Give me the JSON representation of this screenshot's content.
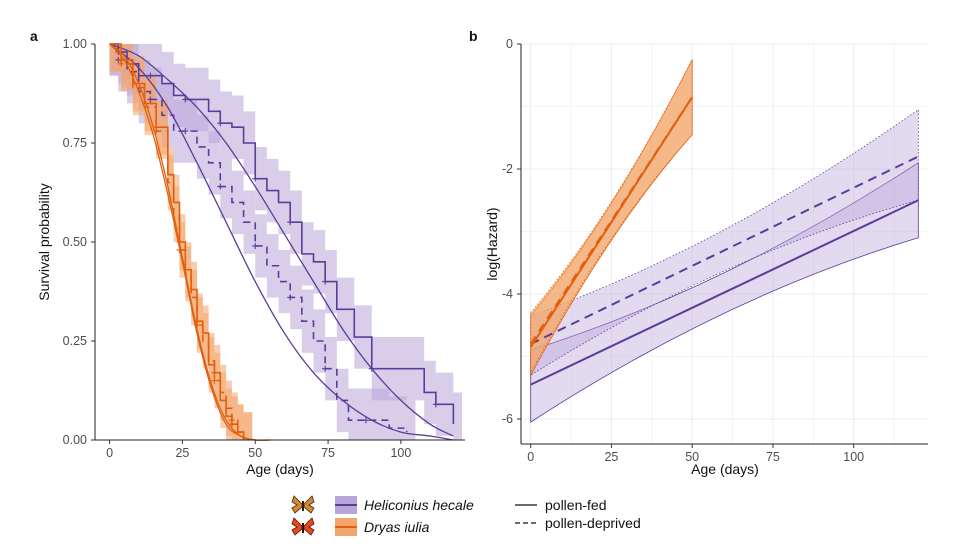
{
  "colors": {
    "heliconius": "#5b3c99",
    "heliconius_light": "#b9a6d8",
    "dryas": "#e35f10",
    "dryas_light": "#f3a66c"
  },
  "legend": {
    "species": [
      {
        "name": "Heliconius hecale",
        "color": "#5b3c99",
        "fill": "#b9a6d8",
        "icon": "butterfly-icon"
      },
      {
        "name": "Dryas iulia",
        "color": "#e35f10",
        "fill": "#f3a66c",
        "icon": "butterfly-icon"
      }
    ],
    "treatments": [
      {
        "name": "pollen-fed",
        "dash": "solid"
      },
      {
        "name": "pollen-deprived",
        "dash": "dashed"
      }
    ]
  },
  "chart_data": [
    {
      "panel": "a",
      "type": "line",
      "xlabel": "Age (days)",
      "ylabel": "Survival probability",
      "xlim": [
        -5,
        122
      ],
      "ylim": [
        0,
        1
      ],
      "xticks": [
        0,
        25,
        50,
        75,
        100
      ],
      "yticks": [
        "0.00",
        "0.25",
        "0.50",
        "0.75",
        "1.00"
      ],
      "grid": false,
      "series": [
        {
          "species": "Heliconius hecale",
          "treatment": "pollen-fed",
          "kind": "smooth",
          "x": [
            0,
            10,
            20,
            30,
            40,
            50,
            60,
            70,
            80,
            90,
            100,
            110,
            118
          ],
          "y": [
            1.0,
            0.97,
            0.91,
            0.84,
            0.75,
            0.64,
            0.52,
            0.4,
            0.28,
            0.18,
            0.1,
            0.04,
            0.01
          ]
        },
        {
          "species": "Heliconius hecale",
          "treatment": "pollen-deprived",
          "kind": "smooth",
          "x": [
            0,
            10,
            20,
            30,
            40,
            50,
            60,
            70,
            80,
            90,
            100,
            110,
            118
          ],
          "y": [
            1.0,
            0.94,
            0.84,
            0.7,
            0.55,
            0.4,
            0.27,
            0.17,
            0.1,
            0.05,
            0.02,
            0.01,
            0.0
          ]
        },
        {
          "species": "Heliconius hecale",
          "treatment": "pollen-fed",
          "kind": "km",
          "x": [
            0,
            3,
            6,
            10,
            14,
            18,
            22,
            26,
            30,
            34,
            38,
            42,
            46,
            50,
            54,
            58,
            62,
            66,
            70,
            74,
            78,
            84,
            90,
            100,
            108,
            112,
            118
          ],
          "y": [
            1.0,
            0.98,
            0.95,
            0.92,
            0.92,
            0.9,
            0.87,
            0.86,
            0.86,
            0.83,
            0.8,
            0.79,
            0.75,
            0.66,
            0.63,
            0.6,
            0.55,
            0.47,
            0.45,
            0.4,
            0.33,
            0.26,
            0.18,
            0.18,
            0.12,
            0.09,
            0.04
          ]
        },
        {
          "species": "Heliconius hecale",
          "treatment": "pollen-deprived",
          "kind": "km",
          "x": [
            0,
            3,
            6,
            10,
            14,
            18,
            22,
            26,
            30,
            34,
            38,
            42,
            46,
            50,
            54,
            58,
            62,
            66,
            70,
            74,
            78,
            82,
            88,
            96,
            102
          ],
          "y": [
            1.0,
            0.96,
            0.93,
            0.88,
            0.86,
            0.82,
            0.78,
            0.78,
            0.74,
            0.7,
            0.64,
            0.6,
            0.55,
            0.49,
            0.44,
            0.4,
            0.36,
            0.3,
            0.25,
            0.18,
            0.1,
            0.05,
            0.05,
            0.03,
            0.02
          ]
        },
        {
          "species": "Dryas iulia",
          "treatment": "pollen-fed",
          "kind": "smooth",
          "x": [
            0,
            5,
            10,
            15,
            20,
            25,
            30,
            35,
            40,
            45,
            50,
            55
          ],
          "y": [
            1.0,
            0.97,
            0.9,
            0.79,
            0.64,
            0.46,
            0.28,
            0.14,
            0.05,
            0.01,
            0.0,
            0.0
          ]
        },
        {
          "species": "Dryas iulia",
          "treatment": "pollen-deprived",
          "kind": "smooth",
          "x": [
            0,
            5,
            10,
            15,
            20,
            25,
            30,
            35,
            40,
            45,
            50,
            55
          ],
          "y": [
            1.0,
            0.96,
            0.88,
            0.77,
            0.62,
            0.45,
            0.27,
            0.13,
            0.04,
            0.01,
            0.0,
            0.0
          ]
        },
        {
          "species": "Dryas iulia",
          "treatment": "pollen-fed",
          "kind": "km",
          "x": [
            0,
            4,
            8,
            12,
            16,
            20,
            22,
            24,
            26,
            28,
            30,
            32,
            34,
            36,
            38,
            40,
            42,
            44,
            46
          ],
          "y": [
            1.0,
            0.96,
            0.9,
            0.85,
            0.79,
            0.67,
            0.6,
            0.5,
            0.43,
            0.38,
            0.3,
            0.27,
            0.19,
            0.17,
            0.1,
            0.06,
            0.04,
            0.02,
            0.0
          ]
        },
        {
          "species": "Dryas iulia",
          "treatment": "pollen-deprived",
          "kind": "km",
          "x": [
            0,
            4,
            8,
            12,
            16,
            20,
            22,
            24,
            26,
            28,
            30,
            32,
            34,
            36,
            38,
            40,
            42,
            44,
            46
          ],
          "y": [
            1.0,
            0.95,
            0.89,
            0.84,
            0.78,
            0.65,
            0.57,
            0.48,
            0.42,
            0.36,
            0.29,
            0.25,
            0.2,
            0.15,
            0.12,
            0.08,
            0.05,
            0.02,
            0.0
          ]
        }
      ]
    },
    {
      "panel": "b",
      "type": "line",
      "xlabel": "Age (days)",
      "ylabel": "log(Hazard)",
      "xlim": [
        -3,
        123
      ],
      "ylim": [
        -6.4,
        0
      ],
      "xticks": [
        0,
        25,
        50,
        75,
        100
      ],
      "yticks": [
        "0",
        "-2",
        "-4",
        "-6"
      ],
      "grid": true,
      "series": [
        {
          "species": "Heliconius hecale",
          "treatment": "pollen-fed",
          "x": [
            0,
            120
          ],
          "y": [
            -5.45,
            -2.5
          ],
          "lower": [
            -6.05,
            -3.1
          ],
          "upper": [
            -4.9,
            -1.9
          ]
        },
        {
          "species": "Heliconius hecale",
          "treatment": "pollen-deprived",
          "x": [
            0,
            120
          ],
          "y": [
            -4.8,
            -1.8
          ],
          "lower": [
            -5.3,
            -2.5
          ],
          "upper": [
            -4.35,
            -1.05
          ]
        },
        {
          "species": "Dryas iulia",
          "treatment": "pollen-fed",
          "x": [
            0,
            50
          ],
          "y": [
            -4.85,
            -0.85
          ],
          "lower": [
            -5.3,
            -1.45
          ],
          "upper": [
            -4.35,
            -0.25
          ]
        },
        {
          "species": "Dryas iulia",
          "treatment": "pollen-deprived",
          "x": [
            0,
            50
          ],
          "y": [
            -4.8,
            -0.85
          ],
          "lower": [
            -5.25,
            -1.45
          ],
          "upper": [
            -4.3,
            -0.25
          ]
        }
      ]
    }
  ]
}
